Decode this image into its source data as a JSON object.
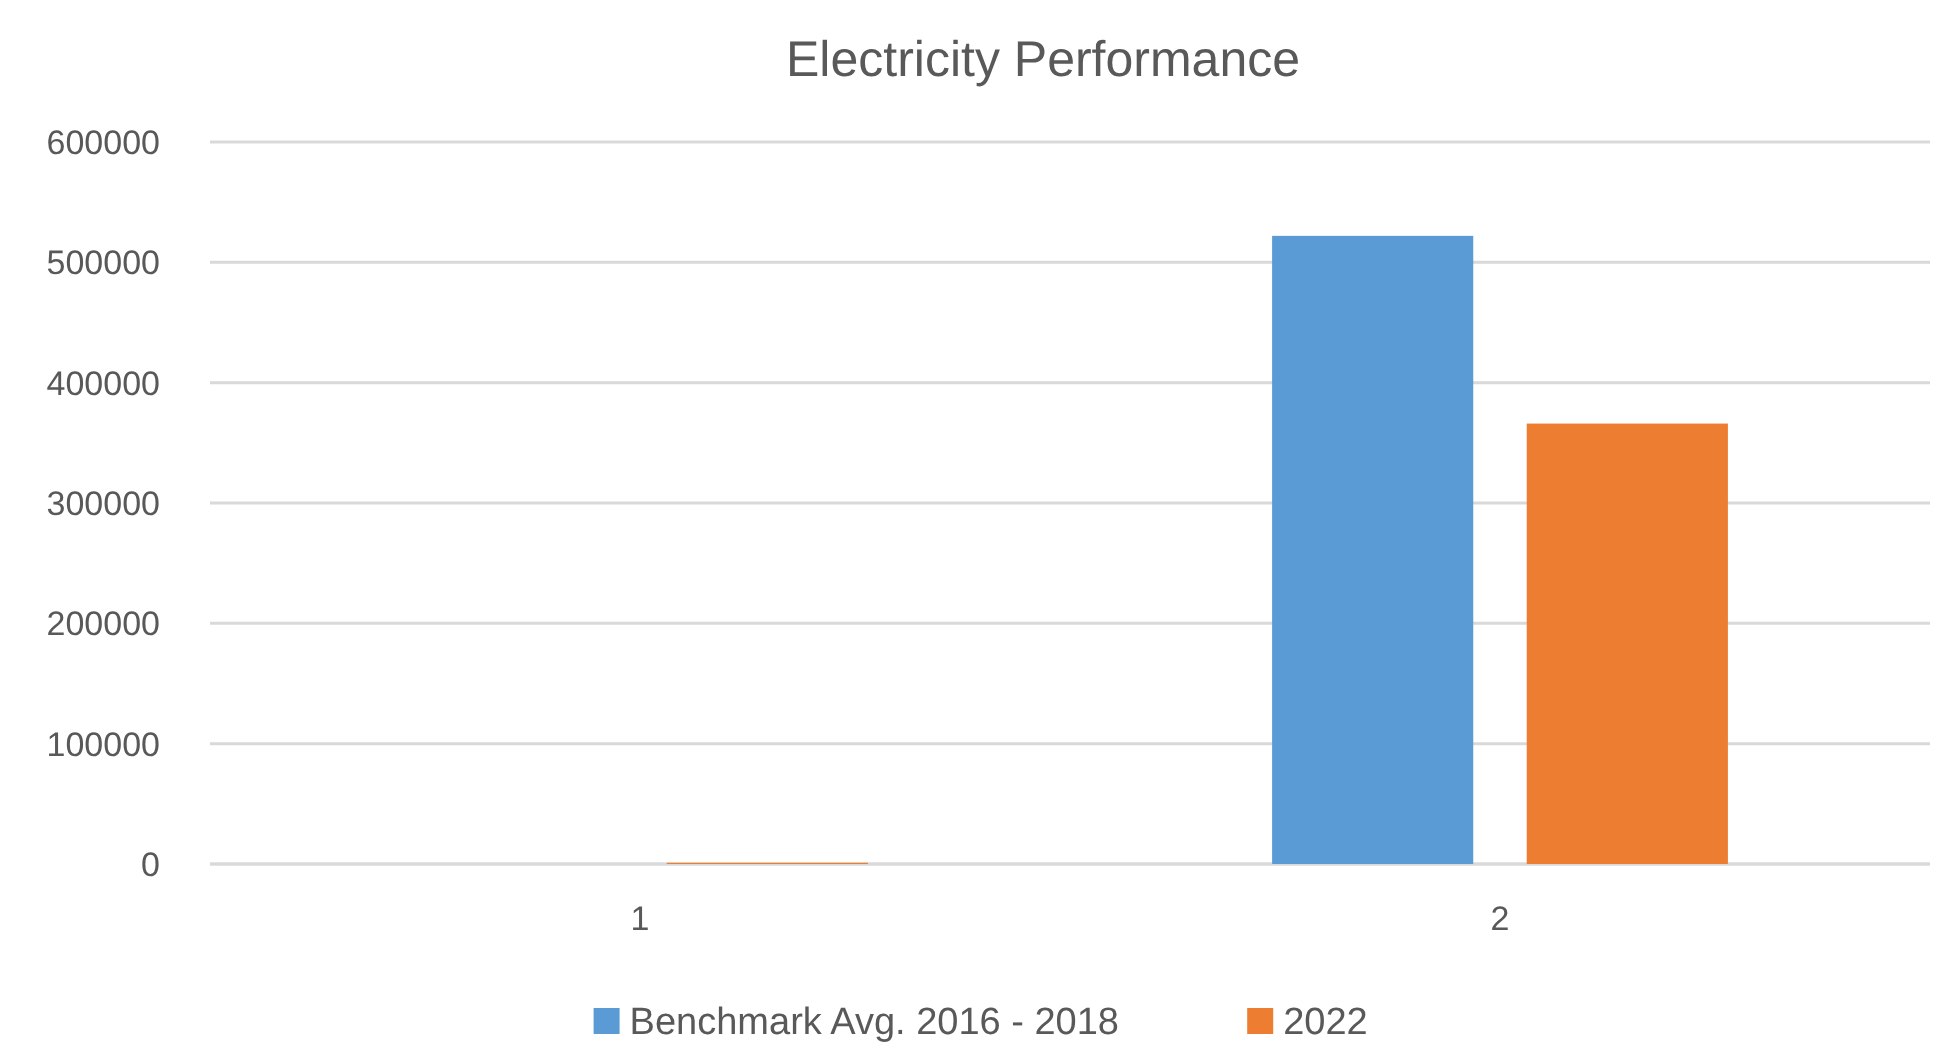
{
  "chart_data": {
    "type": "bar",
    "title": "Electricity Performance",
    "categories": [
      "1",
      "2"
    ],
    "series": [
      {
        "name": "Benchmark  Avg. 2016 - 2018",
        "color": "#5b9bd5",
        "values": [
          0,
          522000
        ]
      },
      {
        "name": "2022",
        "color": "#ed7d31",
        "values": [
          1000,
          366000
        ]
      }
    ],
    "ylim": [
      0,
      600000
    ],
    "yticks": [
      0,
      100000,
      200000,
      300000,
      400000,
      500000,
      600000
    ],
    "grid": "y",
    "legend": "bottom"
  }
}
